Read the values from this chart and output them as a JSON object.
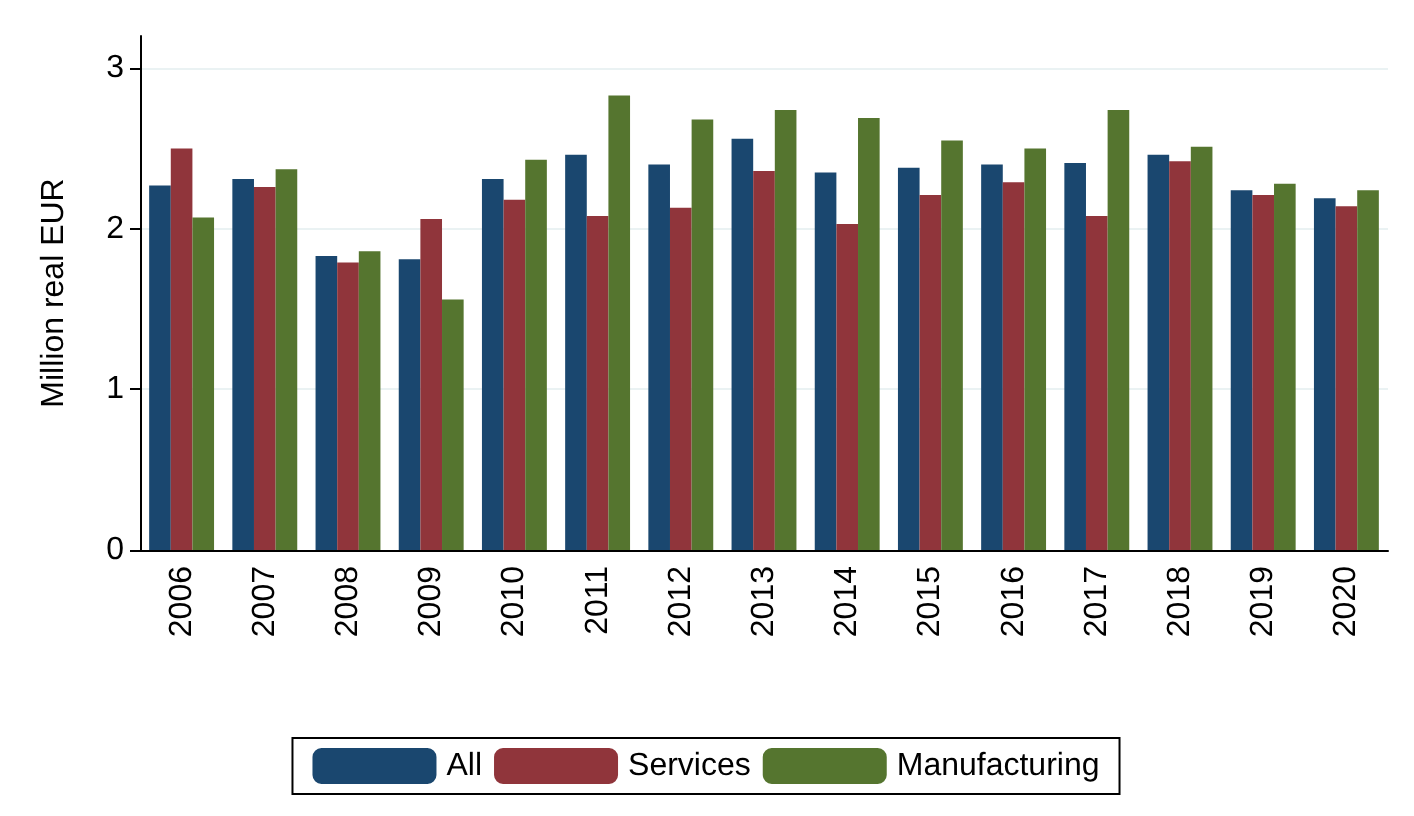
{
  "chart_data": {
    "type": "bar",
    "ylabel": "Million real EUR",
    "categories": [
      "2006",
      "2007",
      "2008",
      "2009",
      "2010",
      "2011",
      "2012",
      "2013",
      "2014",
      "2015",
      "2016",
      "2017",
      "2018",
      "2019",
      "2020"
    ],
    "series": [
      {
        "name": "All",
        "color": "#1a476f",
        "values": [
          2.27,
          2.31,
          1.83,
          1.81,
          2.31,
          2.46,
          2.4,
          2.56,
          2.35,
          2.38,
          2.4,
          2.41,
          2.46,
          2.24,
          2.19
        ]
      },
      {
        "name": "Services",
        "color": "#90353b",
        "values": [
          2.5,
          2.26,
          1.79,
          2.06,
          2.18,
          2.08,
          2.13,
          2.36,
          2.03,
          2.21,
          2.29,
          2.08,
          2.42,
          2.21,
          2.14
        ]
      },
      {
        "name": "Manufacturing",
        "color": "#55752f",
        "values": [
          2.07,
          2.37,
          1.86,
          1.56,
          2.43,
          2.83,
          2.68,
          2.74,
          2.69,
          2.55,
          2.5,
          2.74,
          2.51,
          2.28,
          2.24
        ]
      }
    ],
    "ylim": [
      0,
      3.2
    ],
    "yticks": [
      0,
      1,
      2,
      3
    ],
    "grid": "y",
    "legend": "bottom"
  }
}
